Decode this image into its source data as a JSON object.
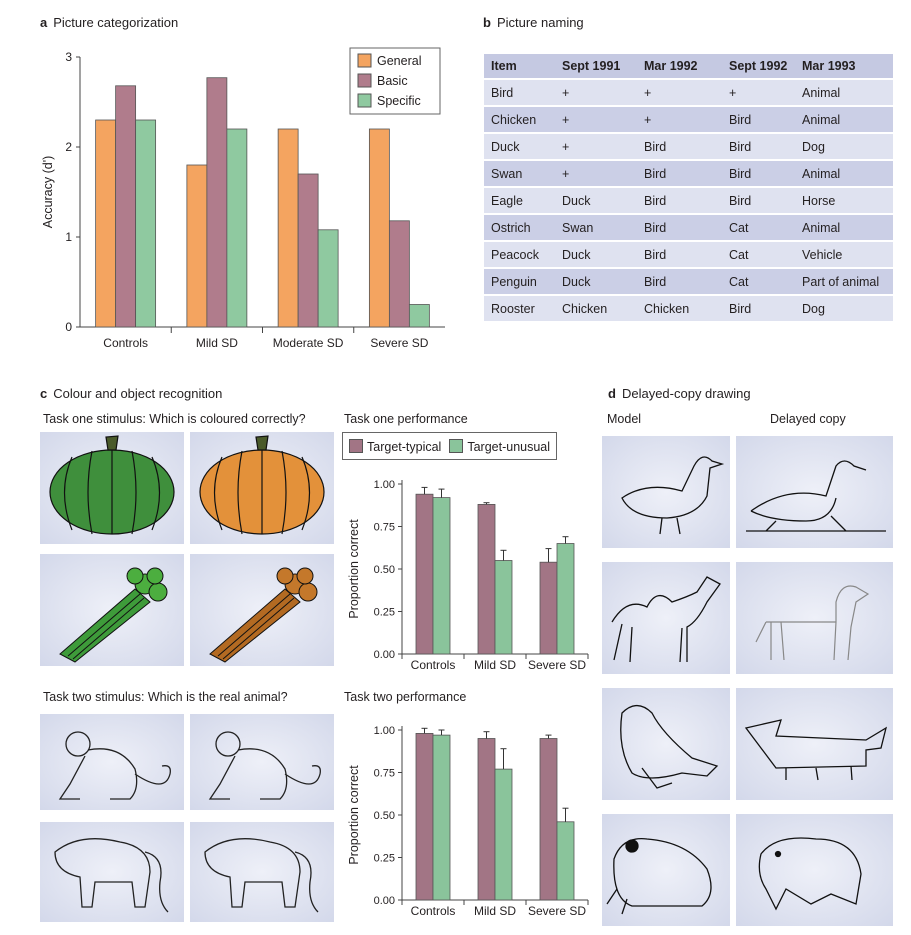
{
  "panel_a": {
    "letter": "a",
    "title": "Picture categorization",
    "chart_data": {
      "type": "bar",
      "ylabel": "Accuracy (d')",
      "ylim": [
        0,
        3
      ],
      "yticks": [
        "0",
        "1",
        "2",
        "3"
      ],
      "categories": [
        "Controls",
        "Mild SD",
        "Moderate SD",
        "Severe SD"
      ],
      "series": [
        {
          "name": "General",
          "color": "#f4a460",
          "values": [
            2.3,
            1.8,
            2.2,
            2.2
          ]
        },
        {
          "name": "Basic",
          "color": "#b07c8c",
          "values": [
            2.68,
            2.77,
            1.7,
            1.18
          ]
        },
        {
          "name": "Specific",
          "color": "#8fc9a0",
          "values": [
            2.3,
            2.2,
            1.08,
            0.25
          ]
        }
      ],
      "legend": "top-right"
    }
  },
  "panel_b": {
    "letter": "b",
    "title": "Picture naming",
    "headers": [
      "Item",
      "Sept 1991",
      "Mar 1992",
      "Sept 1992",
      "Mar 1993"
    ],
    "rows": [
      [
        "Bird",
        "+",
        "+",
        "+",
        "Animal"
      ],
      [
        "Chicken",
        "+",
        "+",
        "Bird",
        "Animal"
      ],
      [
        "Duck",
        "+",
        "Bird",
        "Bird",
        "Dog"
      ],
      [
        "Swan",
        "+",
        "Bird",
        "Bird",
        "Animal"
      ],
      [
        "Eagle",
        "Duck",
        "Bird",
        "Bird",
        "Horse"
      ],
      [
        "Ostrich",
        "Swan",
        "Bird",
        "Cat",
        "Animal"
      ],
      [
        "Peacock",
        "Duck",
        "Bird",
        "Cat",
        "Vehicle"
      ],
      [
        "Penguin",
        "Duck",
        "Bird",
        "Cat",
        "Part of animal"
      ],
      [
        "Rooster",
        "Chicken",
        "Chicken",
        "Bird",
        "Dog"
      ]
    ]
  },
  "panel_c": {
    "letter": "c",
    "title": "Colour and object recognition",
    "task1_stimulus": "Task one stimulus: Which is coloured correctly?",
    "task1_performance": "Task one performance",
    "task2_stimulus": "Task two stimulus: Which is the real animal?",
    "task2_performance": "Task two performance",
    "legend": [
      "Target-typical",
      "Target-unusual"
    ],
    "chart_data": [
      {
        "type": "bar",
        "ylabel": "Proportion correct",
        "ylim": [
          0,
          1
        ],
        "yticks": [
          "0.00",
          "0.25",
          "0.50",
          "0.75",
          "1.00"
        ],
        "categories": [
          "Controls",
          "Mild SD",
          "Severe SD"
        ],
        "series": [
          {
            "name": "Target-typical",
            "color": "#a27585",
            "values": [
              0.94,
              0.88,
              0.54
            ],
            "errors": [
              0.04,
              0.01,
              0.08
            ]
          },
          {
            "name": "Target-unusual",
            "color": "#8ac49b",
            "values": [
              0.92,
              0.55,
              0.65
            ],
            "errors": [
              0.05,
              0.06,
              0.04
            ]
          }
        ]
      },
      {
        "type": "bar",
        "ylabel": "Proportion correct",
        "ylim": [
          0,
          1
        ],
        "yticks": [
          "0.00",
          "0.25",
          "0.50",
          "0.75",
          "1.00"
        ],
        "categories": [
          "Controls",
          "Mild SD",
          "Severe SD"
        ],
        "series": [
          {
            "name": "Target-typical",
            "color": "#a27585",
            "values": [
              0.98,
              0.95,
              0.95
            ],
            "errors": [
              0.03,
              0.04,
              0.02
            ]
          },
          {
            "name": "Target-unusual",
            "color": "#8ac49b",
            "values": [
              0.97,
              0.77,
              0.46
            ],
            "errors": [
              0.03,
              0.12,
              0.08
            ]
          }
        ]
      }
    ]
  },
  "panel_d": {
    "letter": "d",
    "title": "Delayed-copy drawing",
    "col_model": "Model",
    "col_copy": "Delayed copy"
  }
}
